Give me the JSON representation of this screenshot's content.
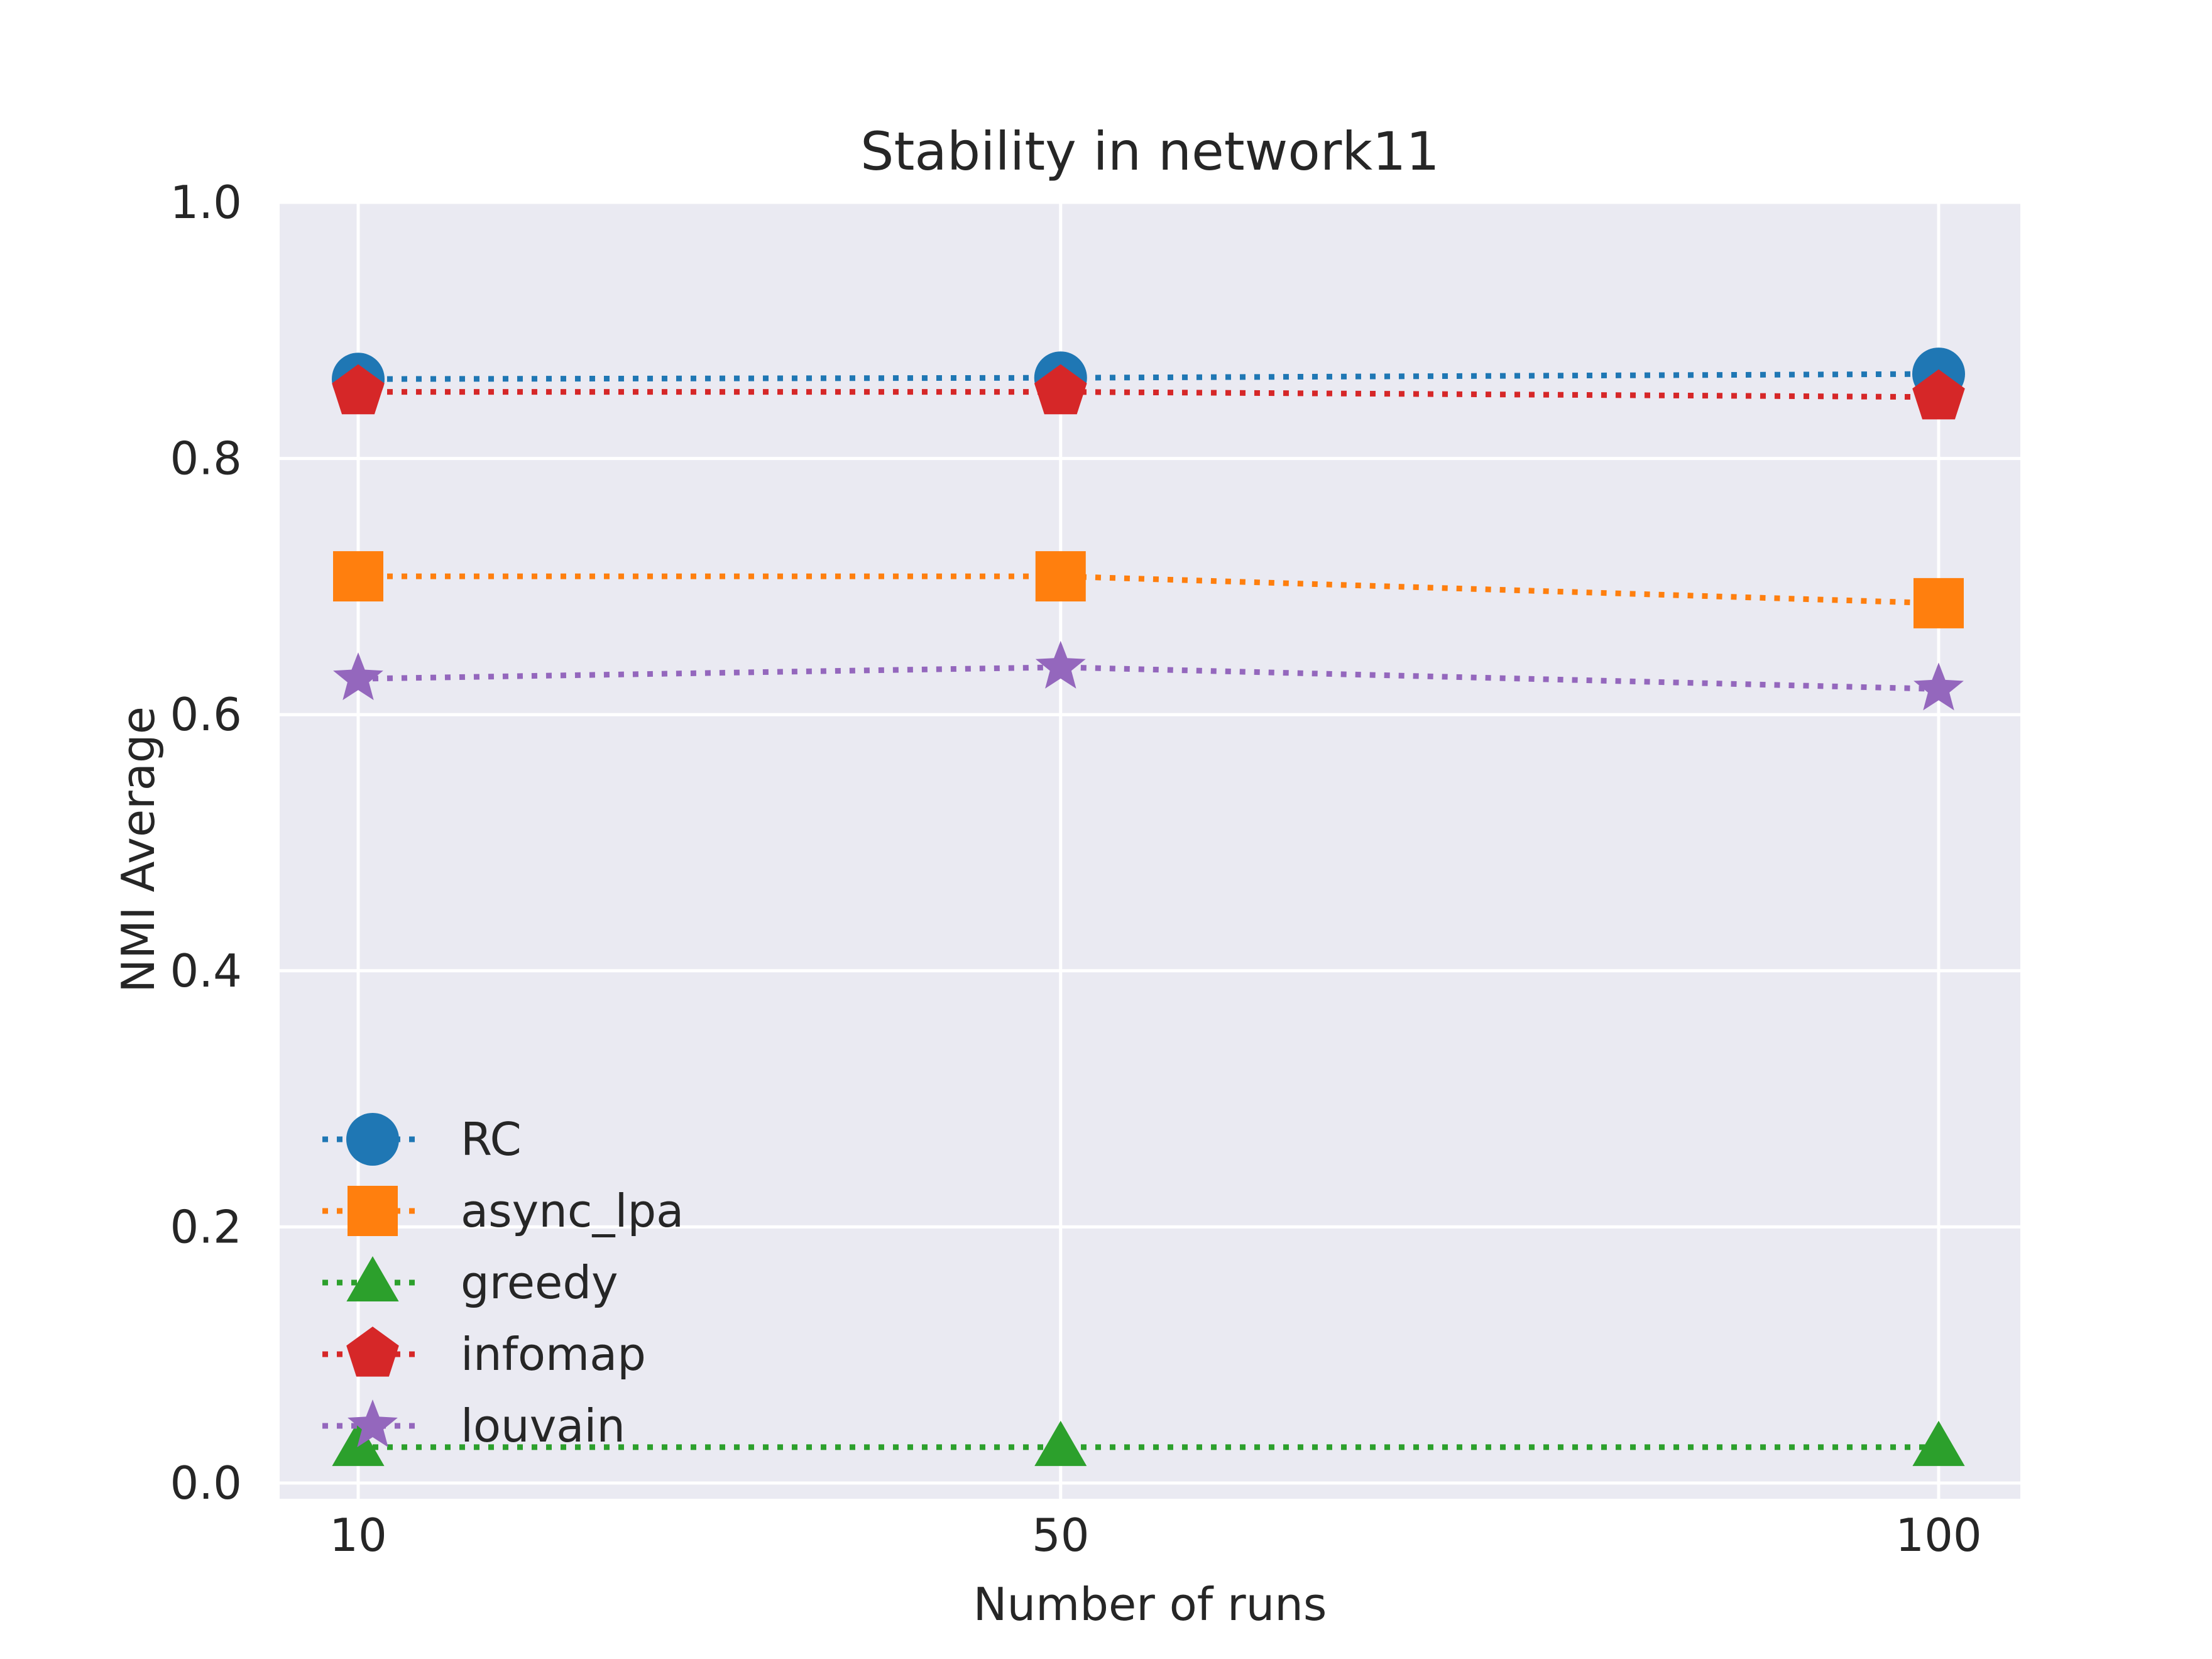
{
  "chart_data": {
    "type": "line",
    "title": "Stability in network11",
    "xlabel": "Number of runs",
    "ylabel": "NMI Average",
    "x": [
      10,
      50,
      100
    ],
    "x_ticks": [
      "10",
      "50",
      "100"
    ],
    "ylim": [
      0.0,
      1.0
    ],
    "y_ticks": [
      "0.0",
      "0.2",
      "0.4",
      "0.6",
      "0.8",
      "1.0"
    ],
    "grid": true,
    "legend_position": "lower-left",
    "series": [
      {
        "name": "RC",
        "values": [
          0.862,
          0.863,
          0.866
        ],
        "color": "#1f77b4",
        "marker": "circle"
      },
      {
        "name": "async_lpa",
        "values": [
          0.708,
          0.708,
          0.687
        ],
        "color": "#ff7f0e",
        "marker": "square"
      },
      {
        "name": "greedy",
        "values": [
          0.028,
          0.028,
          0.028
        ],
        "color": "#2ca02c",
        "marker": "triangle"
      },
      {
        "name": "infomap",
        "values": [
          0.852,
          0.852,
          0.848
        ],
        "color": "#d62728",
        "marker": "pentagon"
      },
      {
        "name": "louvain",
        "values": [
          0.628,
          0.637,
          0.62
        ],
        "color": "#9467bd",
        "marker": "star"
      }
    ]
  }
}
